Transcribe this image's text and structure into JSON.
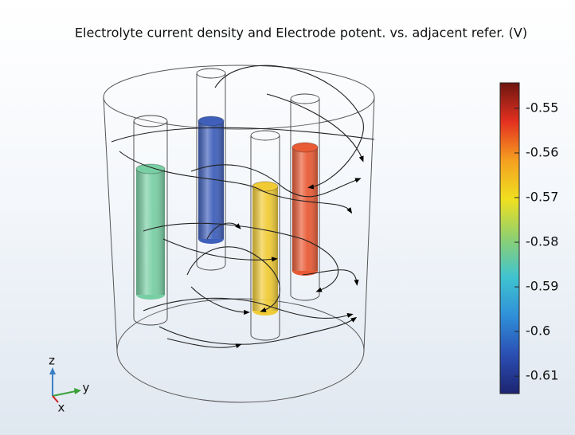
{
  "chart_data": {
    "type": "colorbar-3d",
    "title": "Electrolyte current density and Electrode potent. vs. adjacent refer. (V)",
    "clim": [
      -0.6139,
      -0.5443
    ],
    "cticks": [
      -0.61,
      -0.6,
      -0.59,
      -0.58,
      -0.57,
      -0.56,
      -0.55
    ],
    "colormap": [
      "#1c2470",
      "#2b4eb3",
      "#2f8fd8",
      "#40c4d0",
      "#8fd070",
      "#efe020",
      "#f5a020",
      "#e43020",
      "#6e1610"
    ],
    "electrodes": {
      "values": [
        -0.583,
        -0.605,
        -0.567,
        -0.555
      ]
    },
    "axes_triad": [
      "z",
      "y",
      "x"
    ]
  }
}
